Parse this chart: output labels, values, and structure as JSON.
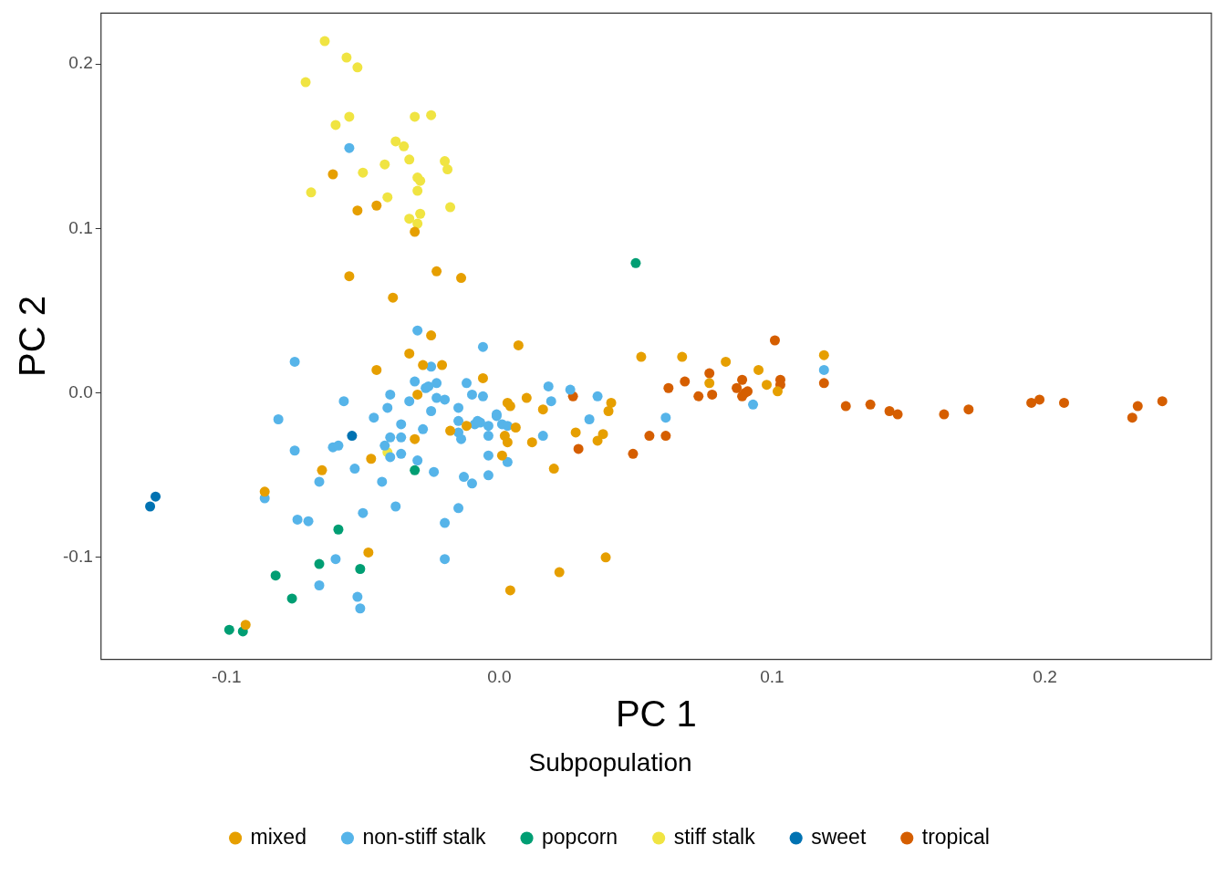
{
  "chart_data": {
    "type": "scatter",
    "xlabel": "PC 1",
    "ylabel": "PC 2",
    "legend_title": "Subpopulation",
    "legend": "bottom",
    "grid": false,
    "marker": "circle",
    "xlim": [
      -0.146,
      0.261
    ],
    "ylim": [
      -0.162,
      0.231
    ],
    "xticks": [
      -0.1,
      {
        "value": 0,
        "label": "0.0"
      },
      0.1,
      0.2
    ],
    "yticks": [
      -0.1,
      {
        "value": 0,
        "label": "0.0"
      },
      0.1,
      0.2
    ],
    "series": [
      {
        "name": "mixed",
        "color": "#e69f00",
        "x": [
          -0.061,
          -0.052,
          -0.045,
          -0.031,
          -0.023,
          -0.014,
          -0.055,
          -0.039,
          -0.025,
          -0.033,
          -0.028,
          -0.021,
          -0.045,
          -0.03,
          -0.006,
          0.007,
          0.004,
          0.01,
          0.016,
          -0.031,
          -0.018,
          -0.012,
          -0.047,
          -0.065,
          -0.086,
          -0.048,
          -0.093,
          0.004,
          0.022,
          0.039,
          0.02,
          0.001,
          0.012,
          0.002,
          0.003,
          0.006,
          0.028,
          0.036,
          0.038,
          0.04,
          0.041,
          0.052,
          0.067,
          0.083,
          0.095,
          0.077,
          0.119,
          0.102,
          0.098,
          0.003
        ],
        "values": [
          0.133,
          0.111,
          0.114,
          0.098,
          0.074,
          0.07,
          0.071,
          0.058,
          0.035,
          0.024,
          0.017,
          0.017,
          0.014,
          -0.001,
          0.009,
          0.029,
          -0.008,
          -0.003,
          -0.01,
          -0.028,
          -0.023,
          -0.02,
          -0.04,
          -0.047,
          -0.06,
          -0.097,
          -0.141,
          -0.12,
          -0.109,
          -0.1,
          -0.046,
          -0.038,
          -0.03,
          -0.026,
          -0.03,
          -0.021,
          -0.024,
          -0.029,
          -0.025,
          -0.011,
          -0.006,
          0.022,
          0.022,
          0.019,
          0.014,
          0.006,
          0.023,
          0.001,
          0.005,
          -0.006
        ]
      },
      {
        "name": "non-stiff stalk",
        "color": "#56b4e9",
        "x": [
          -0.055,
          -0.03,
          -0.006,
          -0.075,
          -0.025,
          -0.031,
          -0.027,
          -0.023,
          -0.026,
          -0.012,
          -0.01,
          -0.023,
          -0.02,
          -0.025,
          -0.033,
          -0.04,
          -0.041,
          -0.057,
          -0.081,
          -0.046,
          -0.036,
          -0.028,
          -0.015,
          -0.015,
          -0.009,
          -0.007,
          -0.006,
          -0.004,
          -0.001,
          0.001,
          0.003,
          -0.004,
          -0.015,
          -0.014,
          -0.04,
          -0.036,
          -0.042,
          -0.04,
          -0.036,
          -0.061,
          -0.059,
          -0.075,
          -0.03,
          -0.053,
          -0.024,
          -0.043,
          -0.066,
          -0.013,
          -0.01,
          -0.004,
          -0.004,
          0.003,
          -0.086,
          -0.038,
          -0.015,
          -0.05,
          -0.074,
          -0.07,
          -0.02,
          -0.06,
          -0.02,
          -0.066,
          -0.052,
          -0.051,
          0.018,
          0.026,
          0.019,
          0.036,
          0.033,
          0.016,
          0.061,
          0.119,
          0.093,
          -0.001,
          -0.008
        ],
        "values": [
          0.149,
          0.038,
          0.028,
          0.019,
          0.016,
          0.007,
          0.003,
          0.006,
          0.004,
          0.006,
          -0.001,
          -0.003,
          -0.004,
          -0.011,
          -0.005,
          -0.001,
          -0.009,
          -0.005,
          -0.016,
          -0.015,
          -0.019,
          -0.022,
          -0.009,
          -0.017,
          -0.019,
          -0.018,
          -0.002,
          -0.02,
          -0.014,
          -0.019,
          -0.02,
          -0.026,
          -0.024,
          -0.028,
          -0.027,
          -0.027,
          -0.032,
          -0.039,
          -0.037,
          -0.033,
          -0.032,
          -0.035,
          -0.041,
          -0.046,
          -0.048,
          -0.054,
          -0.054,
          -0.051,
          -0.055,
          -0.038,
          -0.05,
          -0.042,
          -0.064,
          -0.069,
          -0.07,
          -0.073,
          -0.077,
          -0.078,
          -0.079,
          -0.101,
          -0.101,
          -0.117,
          -0.124,
          -0.131,
          0.004,
          0.002,
          -0.005,
          -0.002,
          -0.016,
          -0.026,
          -0.015,
          0.014,
          -0.007,
          -0.013,
          -0.017
        ]
      },
      {
        "name": "popcorn",
        "color": "#009e73",
        "x": [
          0.05,
          -0.031,
          -0.059,
          -0.066,
          -0.051,
          -0.082,
          -0.076,
          -0.099,
          -0.094
        ],
        "values": [
          0.079,
          -0.047,
          -0.083,
          -0.104,
          -0.107,
          -0.111,
          -0.125,
          -0.144,
          -0.145
        ]
      },
      {
        "name": "stiff stalk",
        "color": "#f0e442",
        "x": [
          -0.064,
          -0.056,
          -0.052,
          -0.071,
          -0.055,
          -0.06,
          -0.031,
          -0.025,
          -0.038,
          -0.035,
          -0.033,
          -0.042,
          -0.02,
          -0.019,
          -0.05,
          -0.03,
          -0.029,
          -0.03,
          -0.069,
          -0.041,
          -0.018,
          -0.029,
          -0.033,
          -0.03,
          -0.041
        ],
        "values": [
          0.214,
          0.204,
          0.198,
          0.189,
          0.168,
          0.163,
          0.168,
          0.169,
          0.153,
          0.15,
          0.142,
          0.139,
          0.141,
          0.136,
          0.134,
          0.131,
          0.129,
          0.123,
          0.122,
          0.119,
          0.113,
          0.109,
          0.106,
          0.103,
          -0.036
        ]
      },
      {
        "name": "sweet",
        "color": "#0072b2",
        "x": [
          -0.126,
          -0.128,
          -0.054
        ],
        "values": [
          -0.063,
          -0.069,
          -0.026
        ]
      },
      {
        "name": "tropical",
        "color": "#d55e00",
        "x": [
          0.101,
          0.062,
          0.068,
          0.077,
          0.073,
          0.078,
          0.087,
          0.089,
          0.089,
          0.09,
          0.091,
          0.103,
          0.103,
          0.119,
          0.127,
          0.136,
          0.143,
          0.146,
          0.163,
          0.172,
          0.195,
          0.198,
          0.207,
          0.234,
          0.232,
          0.243,
          0.027,
          0.029,
          0.049,
          0.055,
          0.061
        ],
        "values": [
          0.032,
          0.003,
          0.007,
          0.012,
          -0.002,
          -0.001,
          0.003,
          0.008,
          -0.002,
          0.0,
          0.001,
          0.008,
          0.005,
          0.006,
          -0.008,
          -0.007,
          -0.011,
          -0.013,
          -0.013,
          -0.01,
          -0.006,
          -0.004,
          -0.006,
          -0.008,
          -0.015,
          -0.005,
          -0.002,
          -0.034,
          -0.037,
          -0.026,
          -0.026
        ]
      }
    ]
  }
}
